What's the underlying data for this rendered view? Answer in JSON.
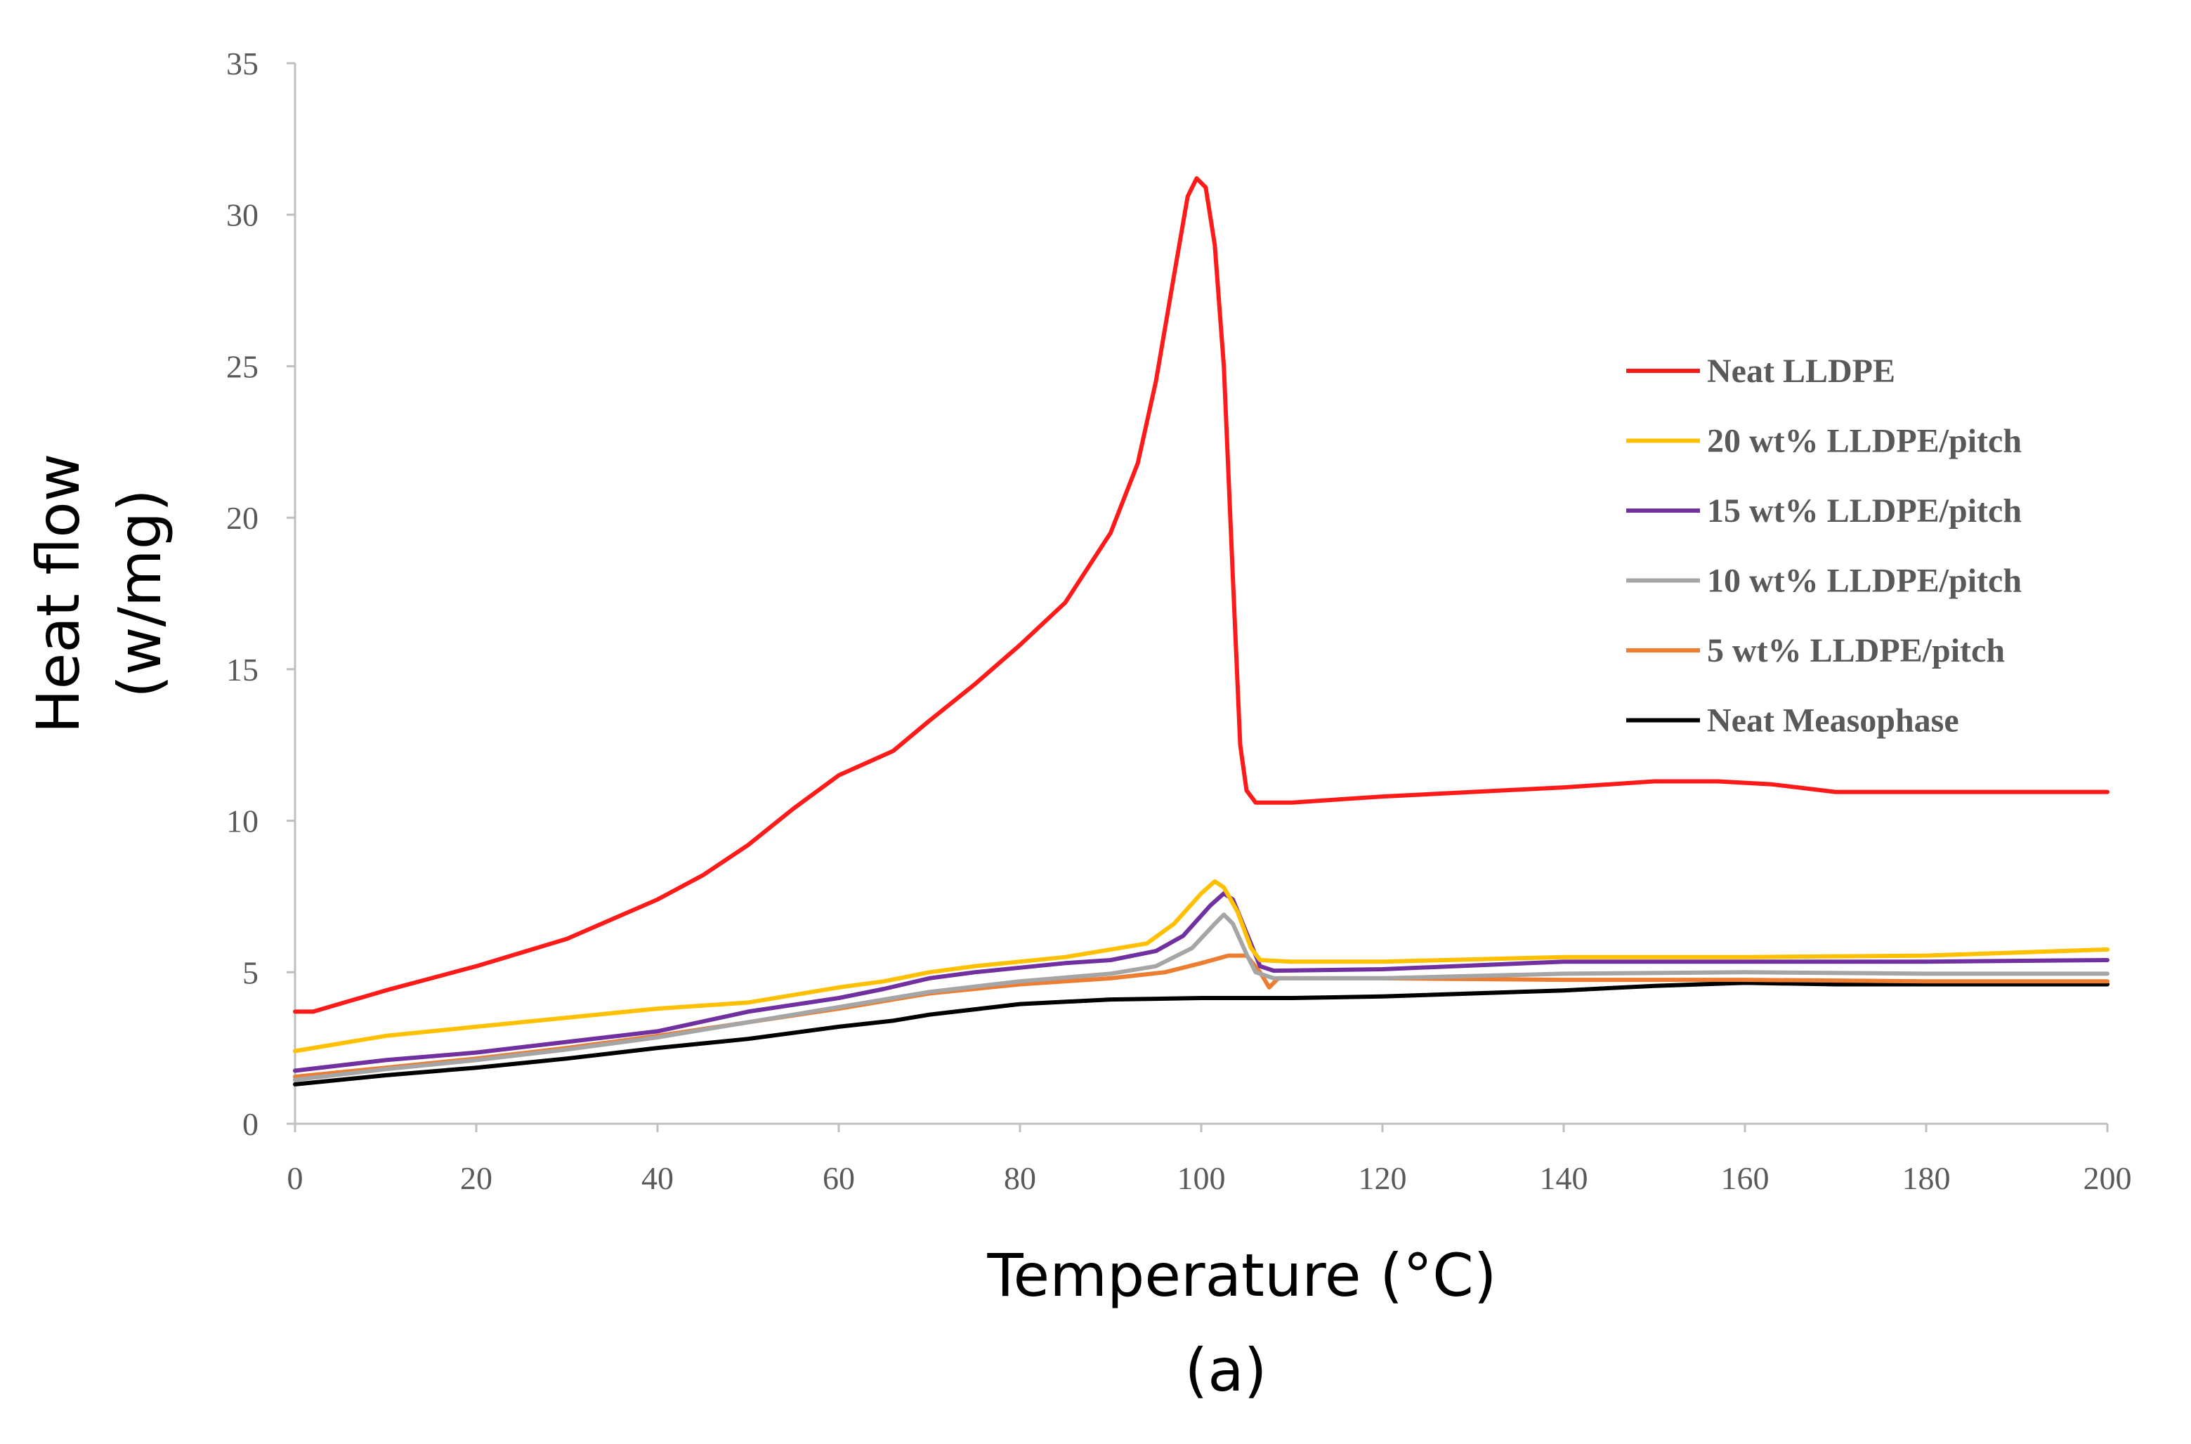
{
  "chart_data": {
    "type": "line",
    "title": "",
    "xlabel": "Temperature (°C)",
    "ylabel_line1": "Heat flow",
    "ylabel_line2": "(w/mg)",
    "caption": "(a)",
    "xlim": [
      0,
      200
    ],
    "ylim": [
      0,
      35
    ],
    "xticks": [
      0,
      20,
      40,
      60,
      80,
      100,
      120,
      140,
      160,
      180,
      200
    ],
    "yticks": [
      0,
      5,
      10,
      15,
      20,
      25,
      30,
      35
    ],
    "grid": false,
    "legend_position": "right",
    "series": [
      {
        "name": "Neat LLDPE",
        "color": "#ff1a1a",
        "points": [
          [
            0,
            3.7
          ],
          [
            2,
            3.7
          ],
          [
            10,
            4.4
          ],
          [
            20,
            5.2
          ],
          [
            30,
            6.1
          ],
          [
            40,
            7.4
          ],
          [
            45,
            8.2
          ],
          [
            50,
            9.2
          ],
          [
            55,
            10.4
          ],
          [
            60,
            11.5
          ],
          [
            66,
            12.3
          ],
          [
            70,
            13.3
          ],
          [
            75,
            14.5
          ],
          [
            80,
            15.8
          ],
          [
            85,
            17.2
          ],
          [
            90,
            19.5
          ],
          [
            93,
            21.8
          ],
          [
            95,
            24.5
          ],
          [
            97,
            28.0
          ],
          [
            98.5,
            30.6
          ],
          [
            99.5,
            31.2
          ],
          [
            100.5,
            30.9
          ],
          [
            101.5,
            29.0
          ],
          [
            102.5,
            25.0
          ],
          [
            103.5,
            18.0
          ],
          [
            104.3,
            12.5
          ],
          [
            105,
            11.0
          ],
          [
            106,
            10.6
          ],
          [
            110,
            10.6
          ],
          [
            120,
            10.8
          ],
          [
            140,
            11.1
          ],
          [
            150,
            11.3
          ],
          [
            157,
            11.3
          ],
          [
            163,
            11.2
          ],
          [
            170,
            10.95
          ],
          [
            180,
            10.95
          ],
          [
            190,
            10.95
          ],
          [
            200,
            10.95
          ]
        ]
      },
      {
        "name": "20 wt% LLDPE/pitch",
        "color": "#ffc000",
        "points": [
          [
            0,
            2.4
          ],
          [
            10,
            2.9
          ],
          [
            20,
            3.2
          ],
          [
            30,
            3.5
          ],
          [
            40,
            3.8
          ],
          [
            50,
            4.0
          ],
          [
            60,
            4.5
          ],
          [
            65,
            4.7
          ],
          [
            70,
            5.0
          ],
          [
            75,
            5.2
          ],
          [
            80,
            5.35
          ],
          [
            85,
            5.5
          ],
          [
            90,
            5.75
          ],
          [
            94,
            5.95
          ],
          [
            97,
            6.6
          ],
          [
            100,
            7.6
          ],
          [
            101.5,
            8.0
          ],
          [
            102.5,
            7.8
          ],
          [
            104,
            7.0
          ],
          [
            105.5,
            5.8
          ],
          [
            106.5,
            5.4
          ],
          [
            110,
            5.35
          ],
          [
            120,
            5.35
          ],
          [
            140,
            5.5
          ],
          [
            160,
            5.5
          ],
          [
            180,
            5.55
          ],
          [
            200,
            5.75
          ]
        ]
      },
      {
        "name": "15 wt% LLDPE/pitch",
        "color": "#7030a0",
        "points": [
          [
            0,
            1.75
          ],
          [
            10,
            2.1
          ],
          [
            20,
            2.35
          ],
          [
            30,
            2.7
          ],
          [
            40,
            3.05
          ],
          [
            50,
            3.7
          ],
          [
            60,
            4.15
          ],
          [
            65,
            4.45
          ],
          [
            70,
            4.8
          ],
          [
            75,
            5.0
          ],
          [
            80,
            5.15
          ],
          [
            85,
            5.3
          ],
          [
            90,
            5.4
          ],
          [
            95,
            5.7
          ],
          [
            98,
            6.2
          ],
          [
            101,
            7.2
          ],
          [
            102.5,
            7.6
          ],
          [
            103.5,
            7.4
          ],
          [
            105,
            6.3
          ],
          [
            106.5,
            5.2
          ],
          [
            108,
            5.05
          ],
          [
            120,
            5.1
          ],
          [
            140,
            5.35
          ],
          [
            160,
            5.35
          ],
          [
            180,
            5.35
          ],
          [
            200,
            5.4
          ]
        ]
      },
      {
        "name": "10 wt% LLDPE/pitch",
        "color": "#a5a5a5",
        "points": [
          [
            0,
            1.45
          ],
          [
            10,
            1.8
          ],
          [
            20,
            2.1
          ],
          [
            30,
            2.45
          ],
          [
            40,
            2.85
          ],
          [
            50,
            3.35
          ],
          [
            60,
            3.85
          ],
          [
            70,
            4.35
          ],
          [
            80,
            4.7
          ],
          [
            90,
            4.95
          ],
          [
            95,
            5.2
          ],
          [
            99,
            5.8
          ],
          [
            101.5,
            6.6
          ],
          [
            102.5,
            6.9
          ],
          [
            103.5,
            6.6
          ],
          [
            105,
            5.6
          ],
          [
            106,
            5.0
          ],
          [
            108,
            4.8
          ],
          [
            120,
            4.8
          ],
          [
            140,
            4.95
          ],
          [
            160,
            5.0
          ],
          [
            180,
            4.95
          ],
          [
            200,
            4.95
          ]
        ]
      },
      {
        "name": "5 wt% LLDPE/pitch",
        "color": "#ed7d31",
        "points": [
          [
            0,
            1.55
          ],
          [
            10,
            1.85
          ],
          [
            20,
            2.15
          ],
          [
            30,
            2.5
          ],
          [
            40,
            2.9
          ],
          [
            50,
            3.35
          ],
          [
            60,
            3.8
          ],
          [
            70,
            4.3
          ],
          [
            80,
            4.6
          ],
          [
            90,
            4.8
          ],
          [
            96,
            5.0
          ],
          [
            100,
            5.3
          ],
          [
            103,
            5.55
          ],
          [
            105,
            5.55
          ],
          [
            106.5,
            5.0
          ],
          [
            107.5,
            4.5
          ],
          [
            108.5,
            4.8
          ],
          [
            120,
            4.8
          ],
          [
            140,
            4.75
          ],
          [
            160,
            4.75
          ],
          [
            180,
            4.7
          ],
          [
            200,
            4.7
          ]
        ]
      },
      {
        "name": "Neat Measophase",
        "color": "#000000",
        "points": [
          [
            0,
            1.3
          ],
          [
            10,
            1.6
          ],
          [
            20,
            1.85
          ],
          [
            30,
            2.15
          ],
          [
            40,
            2.5
          ],
          [
            50,
            2.8
          ],
          [
            60,
            3.2
          ],
          [
            66,
            3.4
          ],
          [
            70,
            3.6
          ],
          [
            80,
            3.95
          ],
          [
            90,
            4.1
          ],
          [
            100,
            4.15
          ],
          [
            110,
            4.15
          ],
          [
            120,
            4.2
          ],
          [
            140,
            4.4
          ],
          [
            150,
            4.55
          ],
          [
            160,
            4.65
          ],
          [
            170,
            4.6
          ],
          [
            180,
            4.6
          ],
          [
            190,
            4.6
          ],
          [
            200,
            4.6
          ]
        ]
      }
    ]
  }
}
